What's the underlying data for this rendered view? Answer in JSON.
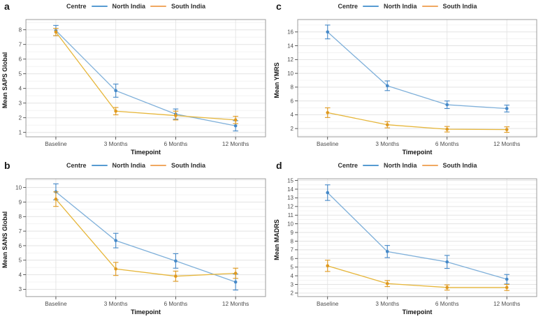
{
  "figure": {
    "legend": {
      "title": "Centre",
      "series": [
        {
          "label": "North India",
          "color": "#569bd2"
        },
        {
          "label": "South India",
          "color": "#f0a860"
        }
      ]
    },
    "xlabel": "Timepoint",
    "categories": [
      "Baseline",
      "3 Months",
      "6 Months",
      "12 Months"
    ]
  },
  "chart_data": [
    {
      "type": "line",
      "panel_label": "a",
      "title": "",
      "ylabel": "Mean SAPS Global",
      "xlabel": "Timepoint",
      "categories": [
        "Baseline",
        "3 Months",
        "6 Months",
        "12 Months"
      ],
      "ylim": [
        0.7,
        8.7
      ],
      "yticks": [
        1,
        2,
        3,
        4,
        5,
        6,
        7,
        8
      ],
      "grid": "major+minor",
      "legend_position": "top-center",
      "series": [
        {
          "name": "North India",
          "color_line": "#7fb0da",
          "color_point": "#4689c8",
          "values": [
            7.95,
            3.85,
            2.25,
            1.45
          ],
          "errors": [
            0.35,
            0.45,
            0.35,
            0.35
          ]
        },
        {
          "name": "South India",
          "color_line": "#e6b63a",
          "color_point": "#df991f",
          "values": [
            7.85,
            2.45,
            2.15,
            1.85
          ],
          "errors": [
            0.25,
            0.25,
            0.3,
            0.25
          ]
        }
      ]
    },
    {
      "type": "line",
      "panel_label": "b",
      "title": "",
      "ylabel": "Mean SANS Global",
      "xlabel": "Timepoint",
      "categories": [
        "Baseline",
        "3 Months",
        "6 Months",
        "12 Months"
      ],
      "ylim": [
        2.5,
        10.6
      ],
      "yticks": [
        3,
        4,
        5,
        6,
        7,
        8,
        9,
        10
      ],
      "grid": "major+minor",
      "legend_position": "top-center",
      "series": [
        {
          "name": "North India",
          "color_line": "#7fb0da",
          "color_point": "#4689c8",
          "values": [
            9.7,
            6.35,
            4.95,
            3.5
          ],
          "errors": [
            0.55,
            0.5,
            0.5,
            0.55
          ]
        },
        {
          "name": "South India",
          "color_line": "#e6b63a",
          "color_point": "#df991f",
          "values": [
            9.2,
            4.4,
            3.9,
            4.1
          ],
          "errors": [
            0.5,
            0.45,
            0.35,
            0.35
          ]
        }
      ]
    },
    {
      "type": "line",
      "panel_label": "c",
      "title": "",
      "ylabel": "Mean YMRS",
      "xlabel": "Timepoint",
      "categories": [
        "Baseline",
        "3 Months",
        "6 Months",
        "12 Months"
      ],
      "ylim": [
        0.8,
        17.8
      ],
      "yticks": [
        2,
        4,
        6,
        8,
        10,
        12,
        14,
        16
      ],
      "grid": "major+minor",
      "legend_position": "top-center",
      "series": [
        {
          "name": "North India",
          "color_line": "#7fb0da",
          "color_point": "#4689c8",
          "values": [
            16.0,
            8.2,
            5.45,
            4.9
          ],
          "errors": [
            1.0,
            0.7,
            0.55,
            0.5
          ]
        },
        {
          "name": "South India",
          "color_line": "#e6b63a",
          "color_point": "#df991f",
          "values": [
            4.3,
            2.55,
            1.9,
            1.85
          ],
          "errors": [
            0.7,
            0.45,
            0.4,
            0.4
          ]
        }
      ]
    },
    {
      "type": "line",
      "panel_label": "d",
      "title": "",
      "ylabel": "Mean MADRS",
      "xlabel": "Timepoint",
      "categories": [
        "Baseline",
        "3 Months",
        "6 Months",
        "12 Months"
      ],
      "ylim": [
        1.6,
        15.2
      ],
      "yticks": [
        2,
        3,
        4,
        5,
        6,
        7,
        8,
        9,
        10,
        11,
        12,
        13,
        14,
        15
      ],
      "grid": "major+minor",
      "legend_position": "top-center",
      "series": [
        {
          "name": "North India",
          "color_line": "#7fb0da",
          "color_point": "#4689c8",
          "values": [
            13.6,
            6.8,
            5.6,
            3.6
          ],
          "errors": [
            0.9,
            0.7,
            0.75,
            0.55
          ]
        },
        {
          "name": "South India",
          "color_line": "#e6b63a",
          "color_point": "#df991f",
          "values": [
            5.15,
            3.1,
            2.65,
            2.65
          ],
          "errors": [
            0.65,
            0.35,
            0.3,
            0.35
          ]
        }
      ]
    }
  ],
  "colors": {
    "grid_major": "#e3e3e3",
    "grid_minor": "#f1f1f1",
    "panel_border": "#9c9c9c",
    "tick_text": "#4d4d4d",
    "axis_title": "#161616"
  }
}
